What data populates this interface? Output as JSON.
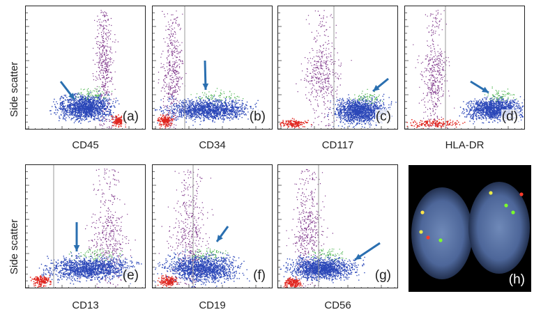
{
  "figure": {
    "y_axis_label": "Side scatter",
    "panels": [
      {
        "id": "a",
        "label": "(a)",
        "marker": "CD45"
      },
      {
        "id": "b",
        "label": "(b)",
        "marker": "CD34"
      },
      {
        "id": "c",
        "label": "(c)",
        "marker": "CD117"
      },
      {
        "id": "d",
        "label": "(d)",
        "marker": "HLA-DR"
      },
      {
        "id": "e",
        "label": "(e)",
        "marker": "CD13"
      },
      {
        "id": "f",
        "label": "(f)",
        "marker": "CD19"
      },
      {
        "id": "g",
        "label": "(g)",
        "marker": "CD56"
      },
      {
        "id": "h",
        "label": "(h)",
        "marker": ""
      }
    ]
  },
  "colors": {
    "blast_population": "#2b47b8",
    "granulocytes": "#7a2f86",
    "lymphocytes": "#e0261f",
    "other_events": "#49b24a",
    "arrow": "#2a6fb0",
    "fish_nucleus": "#5a76a8",
    "fish_red_signal": "#ff3b2b",
    "fish_green_signal": "#7cff2a",
    "fish_fusion_signal": "#e8e84a"
  }
}
